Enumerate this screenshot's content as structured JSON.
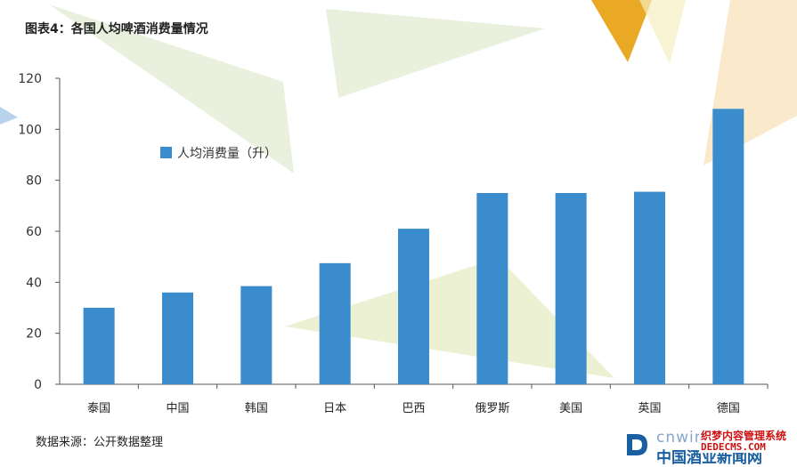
{
  "title": "图表4：各国人均啤酒消费量情况",
  "source": "数据来源：公开数据整理",
  "watermark": {
    "top": "cnwine",
    "bottom": "中国酒业新闻网",
    "site_cn": "织梦内容管理系统",
    "site_en": "DEDECMS.COM"
  },
  "chart_data": {
    "type": "bar",
    "categories": [
      "泰国",
      "中国",
      "韩国",
      "日本",
      "巴西",
      "俄罗斯",
      "美国",
      "英国",
      "德国"
    ],
    "series": [
      {
        "name": "人均消费量（升）",
        "values": [
          30,
          36,
          38.5,
          47.5,
          61,
          75,
          75,
          75.5,
          108
        ],
        "color": "#3a8ccc"
      }
    ],
    "ylim": [
      0,
      120
    ],
    "yticks": [
      0,
      20,
      40,
      60,
      80,
      100,
      120
    ],
    "legend_position": "upper-left",
    "grid": false,
    "xlabel": "",
    "ylabel": ""
  }
}
